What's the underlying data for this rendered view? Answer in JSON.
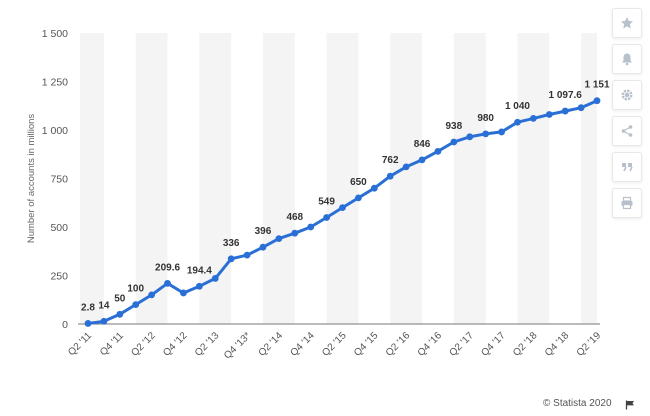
{
  "chart_data": {
    "type": "line",
    "ylabel": "Number of accounts in millions",
    "ylim": [
      0,
      1500
    ],
    "yticks": [
      0,
      250,
      500,
      750,
      1000,
      1250,
      1500
    ],
    "ytick_labels": [
      "0",
      "250",
      "500",
      "750",
      "1 000",
      "1 250",
      "1 500"
    ],
    "grid": "vertical-bands",
    "color": "#2a6fd6",
    "x": [
      "Q2 '11",
      "Q3 '11",
      "Q4 '11",
      "Q1 '12",
      "Q2 '12",
      "Q3 '12",
      "Q4 '12",
      "Q1 '13",
      "Q2 '13",
      "Q3 '13",
      "Q4 '13*",
      "Q1 '14",
      "Q2 '14",
      "Q3 '14",
      "Q4 '14",
      "Q1 '15",
      "Q2 '15",
      "Q3 '15",
      "Q4 '15",
      "Q1 '16",
      "Q2 '16",
      "Q3 '16",
      "Q4 '16",
      "Q1 '17",
      "Q2 '17",
      "Q3 '17",
      "Q4 '17",
      "Q1 '18",
      "Q2 '18",
      "Q3 '18",
      "Q4 '18",
      "Q1 '19",
      "Q2 '19"
    ],
    "xtick_labels": [
      "Q2 '11",
      "Q4 '11",
      "Q2 '12",
      "Q4 '12",
      "Q2 '13",
      "Q4 '13*",
      "Q2 '14",
      "Q4 '14",
      "Q2 '15",
      "Q4 '15",
      "Q2 '16",
      "Q4 '16",
      "Q2 '17",
      "Q4 '17",
      "Q2 '18",
      "Q4 '18",
      "Q2 '19"
    ],
    "values": [
      2.8,
      14,
      50,
      100,
      150,
      209.6,
      160,
      194.4,
      235,
      336,
      355,
      396,
      440,
      468,
      500,
      549,
      600,
      650,
      700,
      762,
      810,
      846,
      890,
      938,
      965,
      980,
      990,
      1040,
      1060,
      1080,
      1097.6,
      1115,
      1151
    ],
    "data_labels": [
      {
        "index": 0,
        "text": "2.8"
      },
      {
        "index": 1,
        "text": "14"
      },
      {
        "index": 2,
        "text": "50"
      },
      {
        "index": 3,
        "text": "100"
      },
      {
        "index": 5,
        "text": "209.6"
      },
      {
        "index": 7,
        "text": "194.4"
      },
      {
        "index": 9,
        "text": "336"
      },
      {
        "index": 11,
        "text": "396"
      },
      {
        "index": 13,
        "text": "468"
      },
      {
        "index": 15,
        "text": "549"
      },
      {
        "index": 17,
        "text": "650"
      },
      {
        "index": 19,
        "text": "762"
      },
      {
        "index": 21,
        "text": "846"
      },
      {
        "index": 23,
        "text": "938"
      },
      {
        "index": 25,
        "text": "980"
      },
      {
        "index": 27,
        "text": "1 040"
      },
      {
        "index": 30,
        "text": "1 097.6"
      },
      {
        "index": 32,
        "text": "1 151"
      }
    ]
  },
  "credit": "© Statista 2020",
  "sidebar": {
    "icons": [
      "star-icon",
      "bell-icon",
      "gear-icon",
      "share-icon",
      "quote-icon",
      "print-icon"
    ]
  }
}
